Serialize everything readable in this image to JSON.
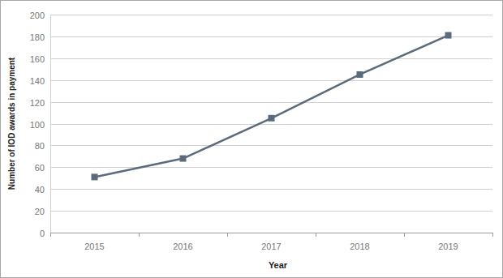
{
  "chart_data": {
    "type": "line",
    "x_label": "Year",
    "y_label": "Number of IOD awards in payment",
    "categories": [
      "2015",
      "2016",
      "2017",
      "2018",
      "2019"
    ],
    "values": [
      51,
      68,
      105,
      145,
      181
    ],
    "color": "#5b6b7c",
    "marker": "square",
    "line_style": "solid",
    "ylim": [
      0,
      200
    ],
    "yticks": [
      0,
      20,
      40,
      60,
      80,
      100,
      120,
      140,
      160,
      180,
      200
    ],
    "grid": true
  }
}
